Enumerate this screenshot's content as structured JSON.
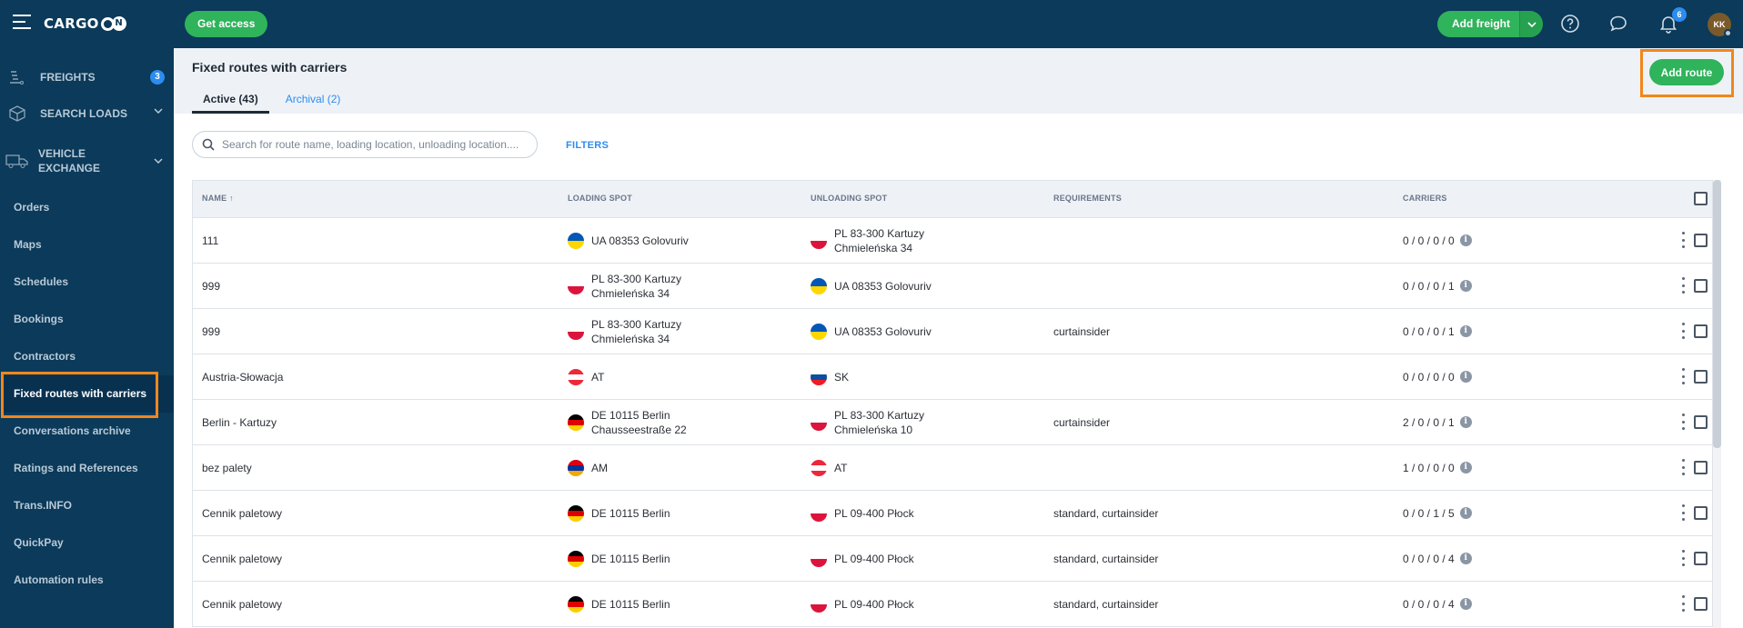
{
  "topbar": {
    "brand": "CARGO",
    "brand_on": "N",
    "get_access_label": "Get access",
    "add_freight_label": "Add freight",
    "notifications_count": "6",
    "avatar_initials": "KK"
  },
  "sidebar": {
    "main": [
      {
        "label": "FREIGHTS",
        "count": "3"
      },
      {
        "label": "SEARCH LOADS"
      },
      {
        "label": "VEHICLE\nEXCHANGE"
      }
    ],
    "sub": [
      "Orders",
      "Maps",
      "Schedules",
      "Bookings",
      "Contractors",
      "Fixed routes with carriers",
      "Conversations archive",
      "Ratings and References",
      "Trans.INFO",
      "QuickPay",
      "Automation rules"
    ]
  },
  "page": {
    "title": "Fixed routes with carriers",
    "tabs": [
      "Active (43)",
      "Archival (2)"
    ],
    "add_route_label": "Add route",
    "search_placeholder": "Search for route name, loading location, unloading location....",
    "filters_label": "FILTERS"
  },
  "table": {
    "headers": {
      "name": "NAME ↑",
      "loading": "LOADING SPOT",
      "unloading": "UNLOADING SPOT",
      "requirements": "REQUIREMENTS",
      "carriers": "CARRIERS"
    },
    "rows": [
      {
        "name": "111",
        "load_flag": "UA",
        "load": [
          "UA 08353 Golovuriv"
        ],
        "unload_flag": "PL",
        "unload": [
          "PL 83-300 Kartuzy",
          "Chmieleńska 34"
        ],
        "req": "",
        "carriers": "0 / 0 / 0 / 0"
      },
      {
        "name": "999",
        "load_flag": "PL",
        "load": [
          "PL 83-300 Kartuzy",
          "Chmieleńska 34"
        ],
        "unload_flag": "UA",
        "unload": [
          "UA 08353 Golovuriv"
        ],
        "req": "",
        "carriers": "0 / 0 / 0 / 1"
      },
      {
        "name": "999",
        "load_flag": "PL",
        "load": [
          "PL 83-300 Kartuzy",
          "Chmieleńska 34"
        ],
        "unload_flag": "UA",
        "unload": [
          "UA 08353 Golovuriv"
        ],
        "req": "curtainsider",
        "carriers": "0 / 0 / 0 / 1"
      },
      {
        "name": "Austria-Słowacja",
        "load_flag": "AT",
        "load": [
          "AT"
        ],
        "unload_flag": "SK",
        "unload": [
          "SK"
        ],
        "req": "",
        "carriers": "0 / 0 / 0 / 0"
      },
      {
        "name": "Berlin - Kartuzy",
        "load_flag": "DE",
        "load": [
          "DE 10115 Berlin",
          "Chausseestraße 22"
        ],
        "unload_flag": "PL",
        "unload": [
          "PL 83-300 Kartuzy",
          "Chmieleńska 10"
        ],
        "req": "curtainsider",
        "carriers": "2 / 0 / 0 / 1"
      },
      {
        "name": "bez palety",
        "load_flag": "AM",
        "load": [
          "AM"
        ],
        "unload_flag": "AT",
        "unload": [
          "AT"
        ],
        "req": "",
        "carriers": "1 / 0 / 0 / 0"
      },
      {
        "name": "Cennik paletowy",
        "load_flag": "DE",
        "load": [
          "DE 10115 Berlin"
        ],
        "unload_flag": "PL",
        "unload": [
          "PL 09-400 Płock"
        ],
        "req": "standard, curtainsider",
        "carriers": "0 / 0 / 1 / 5"
      },
      {
        "name": "Cennik paletowy",
        "load_flag": "DE",
        "load": [
          "DE 10115 Berlin"
        ],
        "unload_flag": "PL",
        "unload": [
          "PL 09-400 Płock"
        ],
        "req": "standard, curtainsider",
        "carriers": "0 / 0 / 0 / 4"
      },
      {
        "name": "Cennik paletowy",
        "load_flag": "DE",
        "load": [
          "DE 10115 Berlin"
        ],
        "unload_flag": "PL",
        "unload": [
          "PL 09-400 Płock"
        ],
        "req": "standard, curtainsider",
        "carriers": "0 / 0 / 0 / 4"
      }
    ]
  },
  "colors": {
    "navy": "#0b3a5a",
    "green": "#2fb35b",
    "blue": "#2d8cf0",
    "highlight": "#f0871c"
  }
}
